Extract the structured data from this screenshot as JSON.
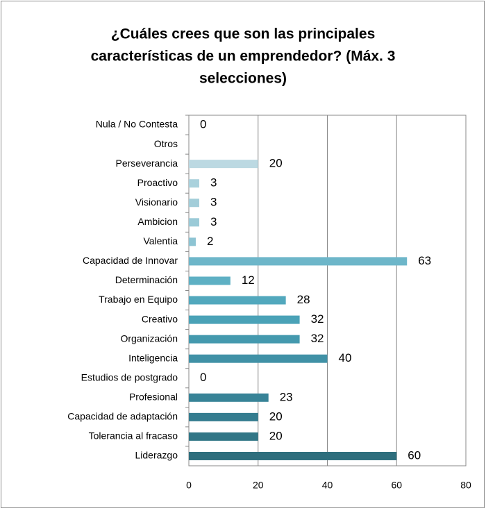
{
  "chart_data": {
    "type": "hbar",
    "title": [
      "¿Cuáles crees que son las principales",
      "características de un emprendedor? (Máx. 3",
      "selecciones)"
    ],
    "categories": [
      "Nula / No Contesta",
      "Otros",
      "Perseverancia",
      "Proactivo",
      "Visionario",
      "Ambicion",
      "Valentia",
      "Capacidad de Innovar",
      "Determinación",
      "Trabajo en Equipo",
      "Creativo",
      "Organización",
      "Inteligencia",
      "Estudios de postgrado",
      "Profesional",
      "Capacidad de adaptación",
      "Tolerancia al fracaso",
      "Liderazgo"
    ],
    "values": [
      0,
      null,
      20,
      3,
      3,
      3,
      2,
      63,
      12,
      28,
      32,
      32,
      40,
      0,
      23,
      20,
      20,
      60
    ],
    "colors": [
      "#c9e0e7",
      null,
      "#bcd9e2",
      "#a9d1dc",
      "#a2cdd9",
      "#9acad7",
      "#8dc4d3",
      "#6db6c9",
      "#5eb0c4",
      "#52a8bd",
      "#4aa2b7",
      "#4499ae",
      "#4091a6",
      "#3b8a9e",
      "#388397",
      "#347c8f",
      "#317686",
      "#2e6e7d"
    ],
    "xlim": [
      0,
      80
    ],
    "xticks": [
      0,
      20,
      40,
      60,
      80
    ],
    "grid": true
  }
}
